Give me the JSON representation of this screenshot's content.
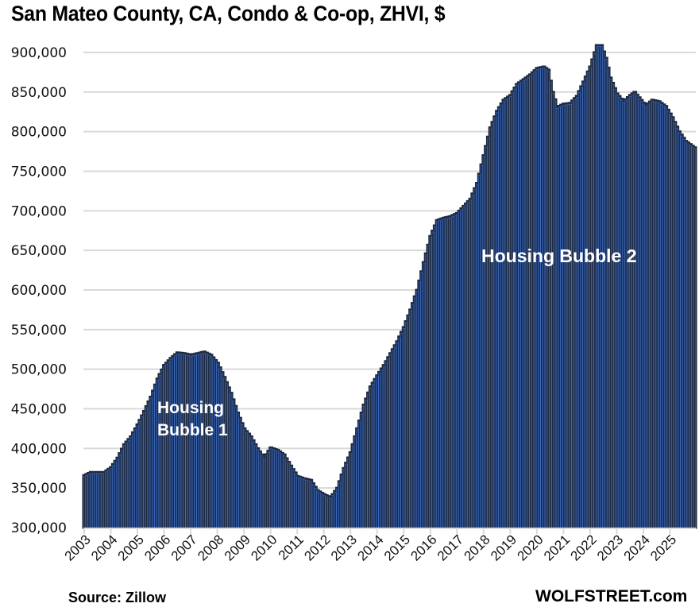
{
  "chart_data": {
    "type": "bar",
    "title": "San Mateo County, CA, Condo & Co-op, ZHVI, $",
    "xlabel": "",
    "ylabel": "",
    "ylim": [
      300000,
      900000
    ],
    "yticks": [
      300000,
      350000,
      400000,
      450000,
      500000,
      550000,
      600000,
      650000,
      700000,
      750000,
      800000,
      850000,
      900000
    ],
    "ytick_labels": [
      "300,000",
      "350,000",
      "400,000",
      "450,000",
      "500,000",
      "550,000",
      "600,000",
      "650,000",
      "700,000",
      "750,000",
      "800,000",
      "850,000",
      "900,000"
    ],
    "xtick_labels": [
      "2003",
      "2004",
      "2005",
      "2006",
      "2007",
      "2008",
      "2009",
      "2010",
      "2011",
      "2012",
      "2013",
      "2014",
      "2015",
      "2016",
      "2017",
      "2018",
      "2019",
      "2020",
      "2021",
      "2022",
      "2023",
      "2024",
      "2025"
    ],
    "grid": true,
    "frequency": "monthly",
    "start": "2003-01",
    "end": "2025-12",
    "series": [
      {
        "name": "ZHVI Condo & Co-op, San Mateo County",
        "color": "#1f2a3f",
        "edge_color": "#3a6bc4",
        "anchors": [
          [
            "2003-01",
            366000
          ],
          [
            "2003-04",
            370000
          ],
          [
            "2003-07",
            370000
          ],
          [
            "2003-10",
            370000
          ],
          [
            "2004-01",
            376000
          ],
          [
            "2004-04",
            388000
          ],
          [
            "2004-07",
            405000
          ],
          [
            "2004-10",
            415000
          ],
          [
            "2005-01",
            430000
          ],
          [
            "2005-04",
            447000
          ],
          [
            "2005-07",
            465000
          ],
          [
            "2005-10",
            488000
          ],
          [
            "2006-01",
            505000
          ],
          [
            "2006-04",
            514000
          ],
          [
            "2006-07",
            521000
          ],
          [
            "2006-10",
            520000
          ],
          [
            "2007-01",
            518000
          ],
          [
            "2007-04",
            520000
          ],
          [
            "2007-07",
            522000
          ],
          [
            "2007-10",
            518000
          ],
          [
            "2008-01",
            508000
          ],
          [
            "2008-04",
            490000
          ],
          [
            "2008-07",
            470000
          ],
          [
            "2008-10",
            445000
          ],
          [
            "2009-01",
            425000
          ],
          [
            "2009-04",
            415000
          ],
          [
            "2009-07",
            400000
          ],
          [
            "2009-10",
            388000
          ],
          [
            "2010-01",
            401000
          ],
          [
            "2010-04",
            398000
          ],
          [
            "2010-07",
            392000
          ],
          [
            "2010-10",
            378000
          ],
          [
            "2011-01",
            365000
          ],
          [
            "2011-04",
            362000
          ],
          [
            "2011-07",
            360000
          ],
          [
            "2011-10",
            347000
          ],
          [
            "2012-01",
            342000
          ],
          [
            "2012-04",
            338000
          ],
          [
            "2012-07",
            350000
          ],
          [
            "2012-10",
            375000
          ],
          [
            "2013-01",
            395000
          ],
          [
            "2013-04",
            425000
          ],
          [
            "2013-07",
            455000
          ],
          [
            "2013-10",
            478000
          ],
          [
            "2014-01",
            492000
          ],
          [
            "2014-04",
            505000
          ],
          [
            "2014-07",
            520000
          ],
          [
            "2014-10",
            535000
          ],
          [
            "2015-01",
            553000
          ],
          [
            "2015-04",
            575000
          ],
          [
            "2015-07",
            600000
          ],
          [
            "2015-10",
            635000
          ],
          [
            "2016-01",
            668000
          ],
          [
            "2016-04",
            688000
          ],
          [
            "2016-07",
            691000
          ],
          [
            "2016-10",
            693000
          ],
          [
            "2017-01",
            697000
          ],
          [
            "2017-04",
            706000
          ],
          [
            "2017-07",
            715000
          ],
          [
            "2017-10",
            735000
          ],
          [
            "2018-01",
            770000
          ],
          [
            "2018-04",
            805000
          ],
          [
            "2018-07",
            826000
          ],
          [
            "2018-10",
            840000
          ],
          [
            "2019-01",
            846000
          ],
          [
            "2019-04",
            860000
          ],
          [
            "2019-07",
            866000
          ],
          [
            "2019-10",
            872000
          ],
          [
            "2020-01",
            880000
          ],
          [
            "2020-04",
            882000
          ],
          [
            "2020-06",
            878000
          ],
          [
            "2020-08",
            850000
          ],
          [
            "2020-10",
            831000
          ],
          [
            "2021-01",
            835000
          ],
          [
            "2021-04",
            836000
          ],
          [
            "2021-07",
            845000
          ],
          [
            "2021-10",
            863000
          ],
          [
            "2022-01",
            882000
          ],
          [
            "2022-04",
            909000
          ],
          [
            "2022-06",
            909000
          ],
          [
            "2022-08",
            893000
          ],
          [
            "2022-10",
            868000
          ],
          [
            "2023-01",
            848000
          ],
          [
            "2023-04",
            838000
          ],
          [
            "2023-07",
            846000
          ],
          [
            "2023-09",
            850000
          ],
          [
            "2023-11",
            843000
          ],
          [
            "2024-02",
            833000
          ],
          [
            "2024-05",
            840000
          ],
          [
            "2024-08",
            838000
          ],
          [
            "2024-11",
            832000
          ],
          [
            "2025-02",
            818000
          ],
          [
            "2025-05",
            800000
          ],
          [
            "2025-08",
            788000
          ],
          [
            "2025-12",
            780000
          ]
        ]
      }
    ],
    "annotations": [
      {
        "text_lines": [
          "Housing",
          "Bubble 1"
        ],
        "near": "2006-2007"
      },
      {
        "text_lines": [
          "Housing Bubble 2"
        ],
        "near": "2018-2022"
      }
    ]
  },
  "footer": {
    "source": "Source: Zillow",
    "brand": "WOLFSTREET.com"
  }
}
